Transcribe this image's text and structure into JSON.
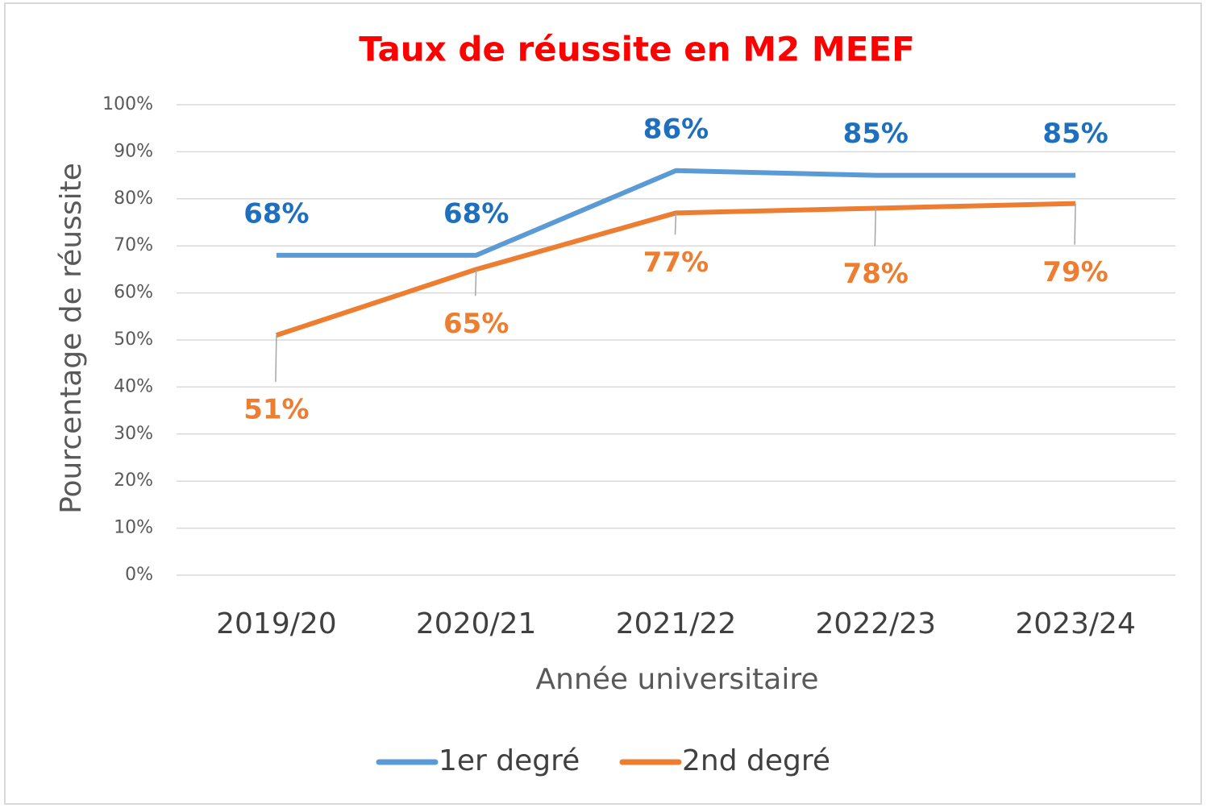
{
  "chart_data": {
    "type": "line",
    "title": "Taux de réussite en M2 MEEF",
    "x_label": "Année universitaire",
    "y_label": "Pourcentage de réussite",
    "categories": [
      "2019/20",
      "2020/21",
      "2021/22",
      "2022/23",
      "2023/24"
    ],
    "series": [
      {
        "name": "1er degré",
        "color": "#5b9bd5",
        "label_color": "#1f6fbf",
        "values": [
          68,
          68,
          86,
          85,
          85
        ],
        "value_labels": [
          "68%",
          "68%",
          "86%",
          "85%",
          "85%"
        ]
      },
      {
        "name": "2nd degré",
        "color": "#ed7d31",
        "label_color": "#ed7d31",
        "values": [
          51,
          65,
          77,
          78,
          79
        ],
        "value_labels": [
          "51%",
          "65%",
          "77%",
          "78%",
          "79%"
        ]
      }
    ],
    "ylim": [
      0,
      100
    ],
    "yticks": [
      {
        "value": 0,
        "label": "0%"
      },
      {
        "value": 10,
        "label": "10%"
      },
      {
        "value": 20,
        "label": "20%"
      },
      {
        "value": 30,
        "label": "30%"
      },
      {
        "value": 40,
        "label": "40%"
      },
      {
        "value": 50,
        "label": "50%"
      },
      {
        "value": 60,
        "label": "60%"
      },
      {
        "value": 70,
        "label": "70%"
      },
      {
        "value": 80,
        "label": "80%"
      },
      {
        "value": 90,
        "label": "90%"
      },
      {
        "value": 100,
        "label": "100%"
      }
    ],
    "grid": true,
    "legend": "bottom",
    "title_color": "#ff0000"
  }
}
